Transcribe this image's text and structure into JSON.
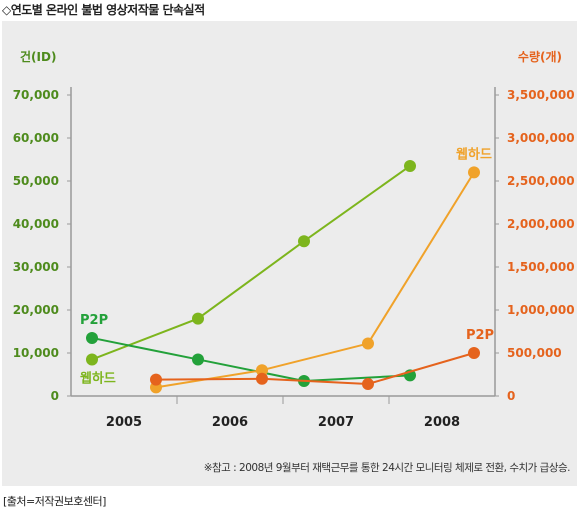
{
  "title": "◇연도별 온라인 불법 영상저작물 단속실적",
  "source": "[출처=저작권보호센터]",
  "chart_data": {
    "type": "line",
    "y_left": {
      "label": "건(ID)",
      "ylim": [
        0,
        70000
      ],
      "ticks": [
        0,
        10000,
        20000,
        30000,
        40000,
        50000,
        60000,
        70000
      ],
      "tick_labels": [
        "0",
        "10,000",
        "20,000",
        "30,000",
        "40,000",
        "50,000",
        "60,000",
        "70,000"
      ],
      "color": "#4e8b1d"
    },
    "y_right": {
      "label": "수량(개)",
      "ylim": [
        0,
        3500000
      ],
      "ticks": [
        0,
        500000,
        1000000,
        1500000,
        2000000,
        2500000,
        3000000,
        3500000
      ],
      "tick_labels": [
        "0",
        "500,000",
        "1,000,000",
        "1,500,000",
        "2,000,000",
        "2,500,000",
        "3,000,000",
        "3,500,000"
      ],
      "color": "#e5631d"
    },
    "categories": [
      "2005",
      "2006",
      "2007",
      "2008"
    ],
    "series": [
      {
        "key": "left_webhard",
        "axis": "left",
        "color": "#7db51d",
        "offset": -1,
        "values": [
          8500,
          18000,
          36000,
          53500
        ]
      },
      {
        "key": "left_p2p",
        "axis": "left",
        "color": "#23a13a",
        "offset": -1,
        "values": [
          13500,
          8500,
          3500,
          4800
        ]
      },
      {
        "key": "right_webhard",
        "axis": "right",
        "color": "#f0a22a",
        "offset": 1,
        "values": [
          100000,
          300000,
          610000,
          2600000
        ]
      },
      {
        "key": "right_p2p",
        "axis": "right",
        "color": "#e5631d",
        "offset": 1,
        "values": [
          190000,
          200000,
          140000,
          500000
        ]
      }
    ],
    "annotations": [
      {
        "text": "P2P",
        "series": "left_p2p",
        "color": "#23a13a"
      },
      {
        "text": "웹하드",
        "series": "left_webhard",
        "color": "#7db51d"
      },
      {
        "text": "웹하드",
        "series": "right_webhard",
        "color": "#f0a22a"
      },
      {
        "text": "P2P",
        "series": "right_p2p",
        "color": "#e5631d"
      }
    ],
    "note": "※참고 : 2008년 9월부터 재택근무를 통한 24시간 모니터링 체제로 전환, 수치가 급상승."
  }
}
